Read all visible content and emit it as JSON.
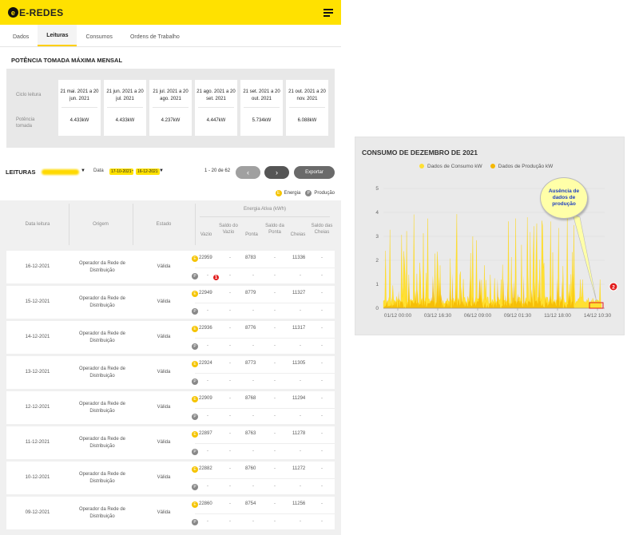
{
  "app": {
    "logo": "E-REDES",
    "tabs": [
      "Dados",
      "Leituras",
      "Consumos",
      "Ordens de Trabalho"
    ],
    "active_tab": "Leituras"
  },
  "power_section": {
    "title": "POTÊNCIA TOMADA MÁXIMA MENSAL",
    "row_labels": [
      "Ciclo leitura",
      "Potência tomada"
    ],
    "cycles": [
      {
        "period": "21 mai. 2021 a 20 jun. 2021",
        "power": "4.433kW"
      },
      {
        "period": "21 jun. 2021 a 20 jul. 2021",
        "power": "4.433kW"
      },
      {
        "period": "21 jul. 2021 a 20 ago. 2021",
        "power": "4.237kW"
      },
      {
        "period": "21 ago. 2021 a 20 set. 2021",
        "power": "4.447kW"
      },
      {
        "period": "21 set. 2021 a 20 out. 2021",
        "power": "5.734kW"
      },
      {
        "period": "21 out. 2021 a 20 nov. 2021",
        "power": "6.088kW"
      }
    ]
  },
  "readings": {
    "title": "LEITURAS",
    "date_label": "Data",
    "date_from": "17-10-2021",
    "date_sep": "-",
    "date_to": "16-12-2021",
    "pagination": "1 - 20 de 62",
    "export_label": "Exportar",
    "legend_energy": "Energia",
    "legend_production": "Produção",
    "columns": {
      "date": "Data leitura",
      "origin": "Origem",
      "state": "Estado",
      "energy_group": "Energia Ativa (kWh)",
      "vazio": "Vazio",
      "saldo_vazio": "Saldo do Vazio",
      "ponta": "Ponta",
      "saldo_ponta": "Saldo da Ponta",
      "cheias": "Cheias",
      "saldo_cheias": "Saldo das Cheias"
    },
    "rows": [
      {
        "date": "16-12-2021",
        "origin": "Operador da Rede de Distribuição",
        "state": "Válida",
        "vazio": "22959",
        "ponta": "8783",
        "cheias": "11336"
      },
      {
        "date": "15-12-2021",
        "origin": "Operador da Rede de Distribuição",
        "state": "Válida",
        "vazio": "22949",
        "ponta": "8779",
        "cheias": "11327"
      },
      {
        "date": "14-12-2021",
        "origin": "Operador da Rede de Distribuição",
        "state": "Válida",
        "vazio": "22936",
        "ponta": "8776",
        "cheias": "11317"
      },
      {
        "date": "13-12-2021",
        "origin": "Operador da Rede de Distribuição",
        "state": "Válida",
        "vazio": "22924",
        "ponta": "8773",
        "cheias": "11305"
      },
      {
        "date": "12-12-2021",
        "origin": "Operador da Rede de Distribuição",
        "state": "Válida",
        "vazio": "22909",
        "ponta": "8768",
        "cheias": "11294"
      },
      {
        "date": "11-12-2021",
        "origin": "Operador da Rede de Distribuição",
        "state": "Válida",
        "vazio": "22897",
        "ponta": "8763",
        "cheias": "11278"
      },
      {
        "date": "10-12-2021",
        "origin": "Operador da Rede de Distribuição",
        "state": "Válida",
        "vazio": "22882",
        "ponta": "8760",
        "cheias": "11272"
      },
      {
        "date": "09-12-2021",
        "origin": "Operador da Rede de Distribuição",
        "state": "Válida",
        "vazio": "22860",
        "ponta": "8754",
        "cheias": "11256"
      }
    ],
    "dash": "-",
    "badge_e": "E",
    "badge_p": "P",
    "marker_1": "1"
  },
  "chart_data": {
    "type": "area",
    "title": "CONSUMO DE DEZEMBRO DE 2021",
    "series": [
      {
        "name": "Dados de Consumo kW",
        "color": "#ffe033"
      },
      {
        "name": "Dados de Produção kW",
        "color": "#f5b800"
      }
    ],
    "x_ticks": [
      "01/12 00:00",
      "03/12 16:30",
      "06/12 09:00",
      "09/12 01:30",
      "11/12 18:00",
      "14/12 10:30"
    ],
    "y_ticks": [
      "0",
      "1",
      "2",
      "3",
      "4",
      "5"
    ],
    "ylim": [
      0,
      5
    ],
    "callout": "Ausência de dados de produção",
    "marker_2": "2"
  }
}
